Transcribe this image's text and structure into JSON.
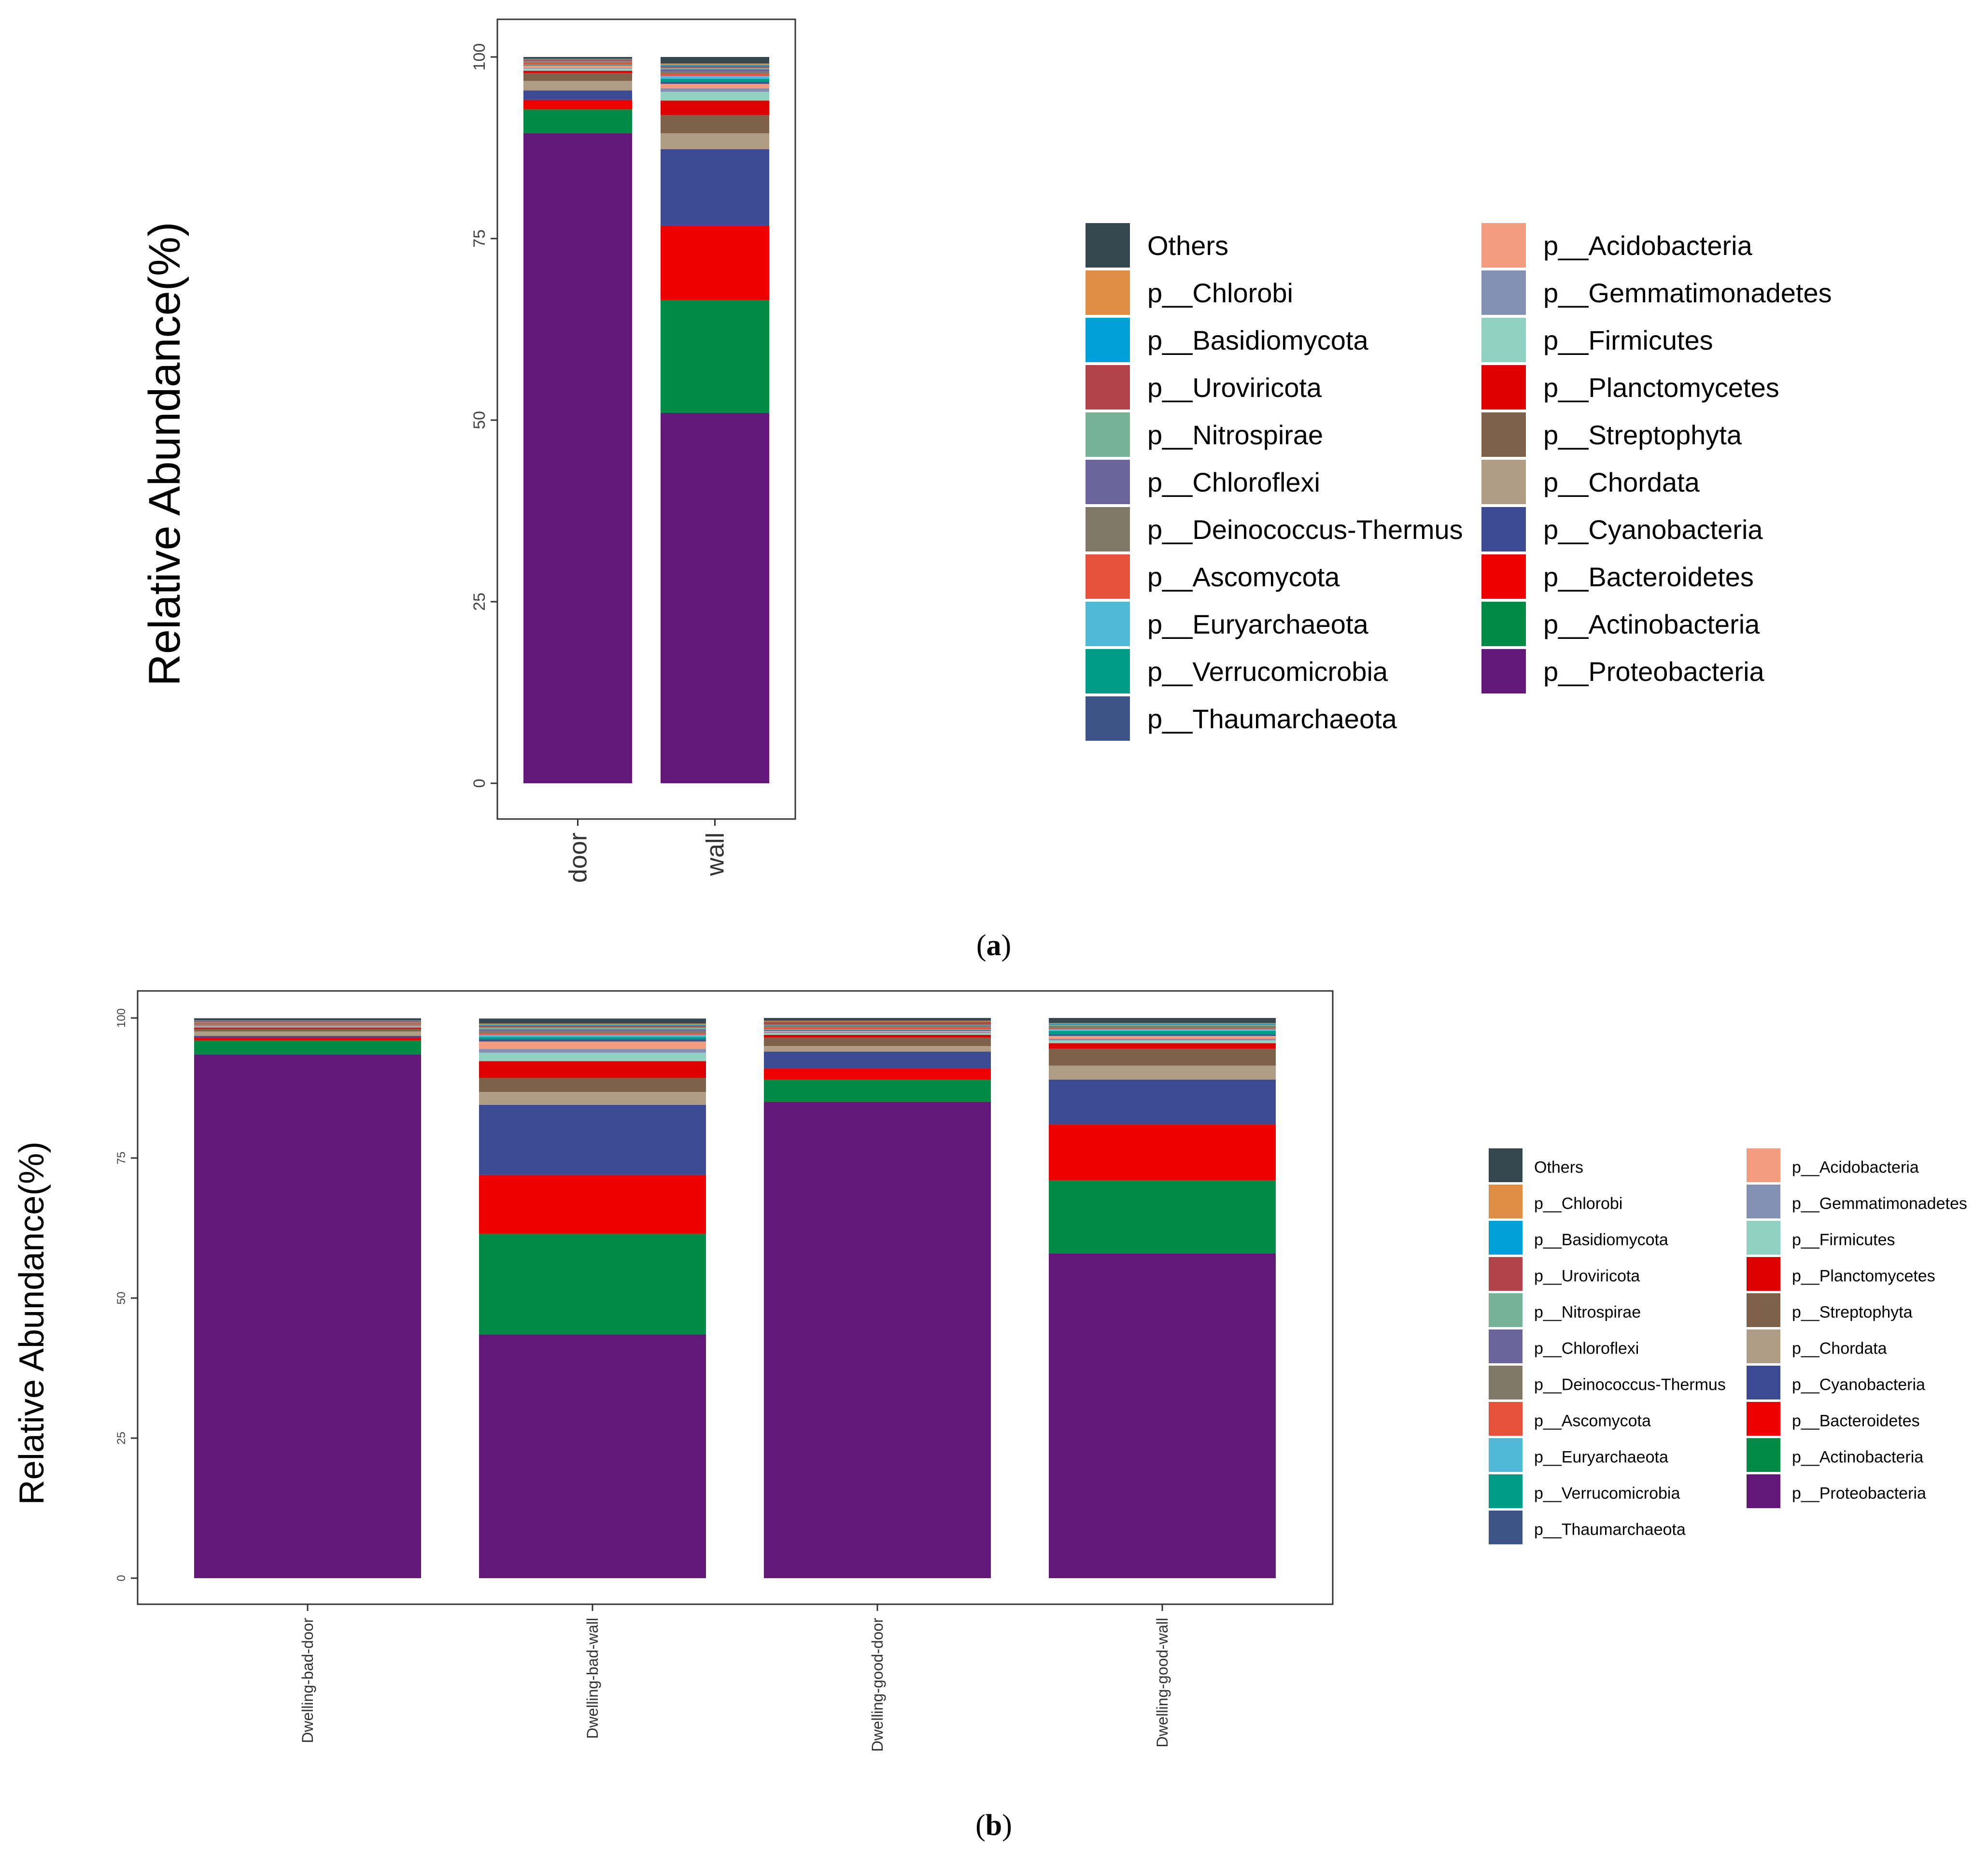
{
  "colors": {
    "Others": "#36474F",
    "p__Chlorobi": "#E08E45",
    "p__Basidiomycota": "#00A1D9",
    "p__Uroviricota": "#B2434A",
    "p__Nitrospirae": "#77B296",
    "p__Chloroflexi": "#6A649A",
    "p__Deinococcus-Thermus": "#807866",
    "p__Ascomycota": "#E6513B",
    "p__Euryarchaeota": "#4EBAD6",
    "p__Verrucomicrobia": "#009C87",
    "p__Thaumarchaeota": "#3D5488",
    "p__Acidobacteria": "#F39C80",
    "p__Gemmatimonadetes": "#8490B3",
    "p__Firmicutes": "#91D1C2",
    "p__Planctomycetes": "#DC0000",
    "p__Streptophyta": "#7E6148",
    "p__Chordata": "#B09C85",
    "p__Cyanobacteria": "#3C4A93",
    "p__Bacteroidetes": "#EE0000",
    "p__Actinobacteria": "#008B45",
    "p__Proteobacteria": "#631879"
  },
  "legend": {
    "col1": [
      "Others",
      "p__Chlorobi",
      "p__Basidiomycota",
      "p__Uroviricota",
      "p__Nitrospirae",
      "p__Chloroflexi",
      "p__Deinococcus-Thermus",
      "p__Ascomycota",
      "p__Euryarchaeota",
      "p__Verrucomicrobia",
      "p__Thaumarchaeota"
    ],
    "col2": [
      "p__Acidobacteria",
      "p__Gemmatimonadetes",
      "p__Firmicutes",
      "p__Planctomycetes",
      "p__Streptophyta",
      "p__Chordata",
      "p__Cyanobacteria",
      "p__Bacteroidetes",
      "p__Actinobacteria",
      "p__Proteobacteria"
    ]
  },
  "captions": {
    "a_letter": "a",
    "b_letter": "b"
  },
  "chart_data": [
    {
      "type": "bar",
      "stacked": true,
      "ylabel": "Relative Abundance(%)",
      "ylim": [
        0,
        100
      ],
      "yticks": [
        0,
        25,
        50,
        75,
        100
      ],
      "categories": [
        "door",
        "wall"
      ],
      "series": [
        {
          "name": "p__Proteobacteria",
          "values": [
            89.5,
            51.0
          ]
        },
        {
          "name": "p__Actinobacteria",
          "values": [
            3.3,
            15.5
          ]
        },
        {
          "name": "p__Bacteroidetes",
          "values": [
            1.3,
            10.3
          ]
        },
        {
          "name": "p__Cyanobacteria",
          "values": [
            1.3,
            10.5
          ]
        },
        {
          "name": "p__Chordata",
          "values": [
            1.3,
            2.2
          ]
        },
        {
          "name": "p__Streptophyta",
          "values": [
            1.1,
            2.5
          ]
        },
        {
          "name": "p__Planctomycetes",
          "values": [
            0.3,
            2.0
          ]
        },
        {
          "name": "p__Firmicutes",
          "values": [
            0.3,
            1.2
          ]
        },
        {
          "name": "p__Gemmatimonadetes",
          "values": [
            0.1,
            0.5
          ]
        },
        {
          "name": "p__Acidobacteria",
          "values": [
            0.3,
            0.6
          ]
        },
        {
          "name": "p__Thaumarchaeota",
          "values": [
            0.05,
            0.3
          ]
        },
        {
          "name": "p__Verrucomicrobia",
          "values": [
            0.05,
            0.4
          ]
        },
        {
          "name": "p__Euryarchaeota",
          "values": [
            0.05,
            0.4
          ]
        },
        {
          "name": "p__Ascomycota",
          "values": [
            0.3,
            0.3
          ]
        },
        {
          "name": "p__Deinococcus-Thermus",
          "values": [
            0.1,
            0.3
          ]
        },
        {
          "name": "p__Chloroflexi",
          "values": [
            0.05,
            0.3
          ]
        },
        {
          "name": "p__Nitrospirae",
          "values": [
            0.05,
            0.2
          ]
        },
        {
          "name": "p__Uroviricota",
          "values": [
            0.2,
            0.2
          ]
        },
        {
          "name": "p__Basidiomycota",
          "values": [
            0.05,
            0.2
          ]
        },
        {
          "name": "p__Chlorobi",
          "values": [
            0.05,
            0.2
          ]
        },
        {
          "name": "Others",
          "values": [
            0.25,
            0.9
          ]
        }
      ]
    },
    {
      "type": "bar",
      "stacked": true,
      "ylabel": "Relative Abundance(%)",
      "ylim": [
        0,
        100
      ],
      "yticks": [
        0,
        25,
        50,
        75,
        100
      ],
      "categories": [
        "Dwelling-bad-door",
        "Dwelling-bad-wall",
        "Dwelling-good-door",
        "Dwelling-good-wall"
      ],
      "series": [
        {
          "name": "p__Proteobacteria",
          "values": [
            93.5,
            43.5,
            85.0,
            58.0
          ]
        },
        {
          "name": "p__Actinobacteria",
          "values": [
            2.5,
            18.0,
            4.0,
            13.0
          ]
        },
        {
          "name": "p__Bacteroidetes",
          "values": [
            0.5,
            10.5,
            2.0,
            10.0
          ]
        },
        {
          "name": "p__Cyanobacteria",
          "values": [
            0.3,
            12.5,
            3.0,
            8.0
          ]
        },
        {
          "name": "p__Chordata",
          "values": [
            0.8,
            2.3,
            1.0,
            2.5
          ]
        },
        {
          "name": "p__Streptophyta",
          "values": [
            0.5,
            2.5,
            1.5,
            3.0
          ]
        },
        {
          "name": "p__Planctomycetes",
          "values": [
            0.2,
            3.0,
            0.5,
            1.0
          ]
        },
        {
          "name": "p__Firmicutes",
          "values": [
            0.1,
            1.5,
            0.3,
            0.5
          ]
        },
        {
          "name": "p__Gemmatimonadetes",
          "values": [
            0.1,
            0.7,
            0.2,
            0.3
          ]
        },
        {
          "name": "p__Acidobacteria",
          "values": [
            0.1,
            1.3,
            0.2,
            0.5
          ]
        },
        {
          "name": "p__Thaumarchaeota",
          "values": [
            0.05,
            0.4,
            0.1,
            0.3
          ]
        },
        {
          "name": "p__Verrucomicrobia",
          "values": [
            0.05,
            0.4,
            0.1,
            0.6
          ]
        },
        {
          "name": "p__Euryarchaeota",
          "values": [
            0.05,
            0.4,
            0.1,
            0.3
          ]
        },
        {
          "name": "p__Ascomycota",
          "values": [
            0.2,
            0.3,
            0.3,
            0.2
          ]
        },
        {
          "name": "p__Deinococcus-Thermus",
          "values": [
            0.2,
            0.4,
            0.3,
            0.3
          ]
        },
        {
          "name": "p__Chloroflexi",
          "values": [
            0.05,
            0.3,
            0.1,
            0.1
          ]
        },
        {
          "name": "p__Nitrospirae",
          "values": [
            0.05,
            0.3,
            0.1,
            0.2
          ]
        },
        {
          "name": "p__Uroviricota",
          "values": [
            0.2,
            0.3,
            0.5,
            0.1
          ]
        },
        {
          "name": "p__Basidiomycota",
          "values": [
            0.05,
            0.2,
            0.1,
            0.1
          ]
        },
        {
          "name": "p__Chlorobi",
          "values": [
            0.05,
            0.2,
            0.1,
            0.1
          ]
        },
        {
          "name": "Others",
          "values": [
            0.4,
            0.9,
            0.5,
            0.9
          ]
        }
      ]
    }
  ]
}
